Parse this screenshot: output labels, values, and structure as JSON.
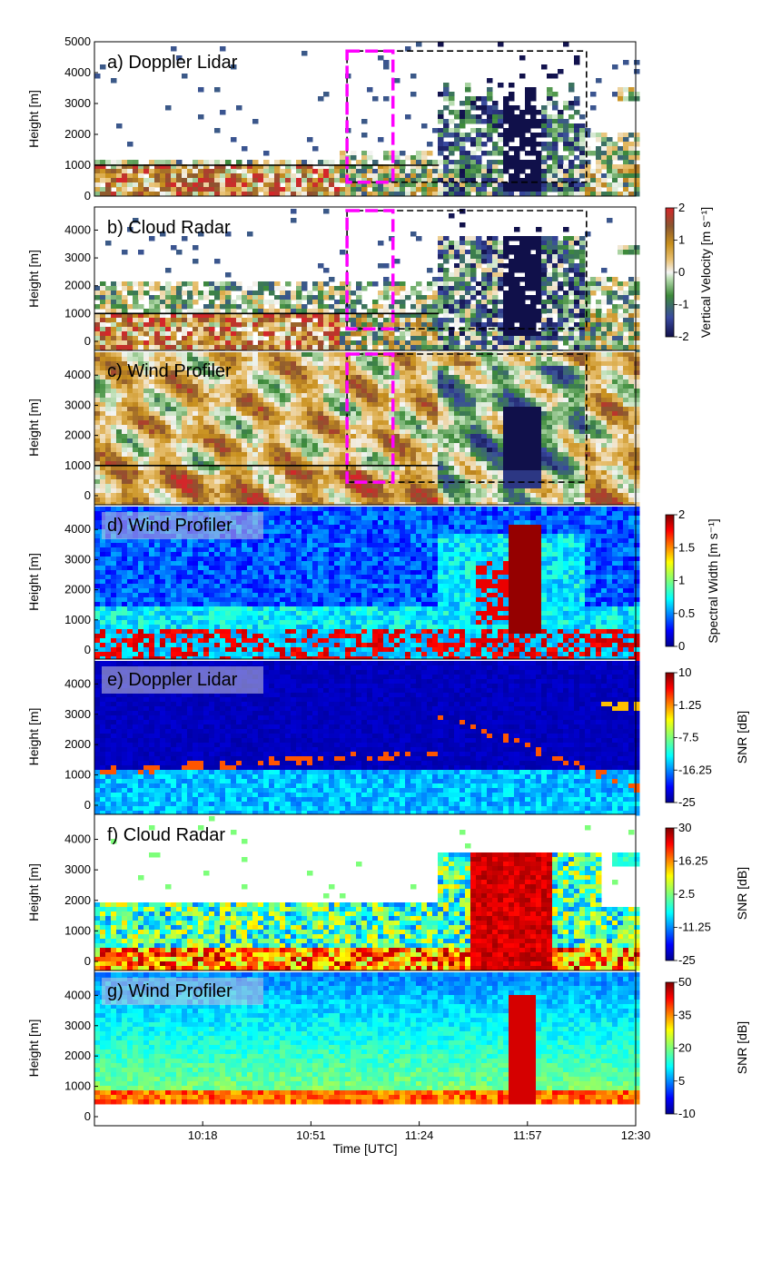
{
  "chart_data": {
    "type": "heatmap",
    "shared_x_axis": {
      "label": "Time [UTC]",
      "ticks": [
        "10:18",
        "10:51",
        "11:24",
        "11:57",
        "12:30"
      ],
      "tick_values_minutes": [
        618,
        651,
        684,
        717,
        750
      ],
      "range_minutes": [
        585,
        750
      ]
    },
    "y_axis": {
      "label": "Height [m]",
      "range": [
        0,
        5000
      ],
      "ticks_panel_a": [
        0,
        1000,
        2000,
        3000,
        4000,
        5000
      ],
      "ticks_other": [
        0,
        1000,
        2000,
        3000,
        4000
      ]
    },
    "panels": [
      {
        "id": "a",
        "label": "a) Doppler Lidar",
        "variable": "Vertical Velocity",
        "colormap": "velocity",
        "boxes": true,
        "label_bg": false,
        "ymax": 5000
      },
      {
        "id": "b",
        "label": "b) Cloud Radar",
        "variable": "Vertical Velocity",
        "colormap": "velocity",
        "boxes": true,
        "label_bg": false,
        "ymax": 4700
      },
      {
        "id": "c",
        "label": "c) Wind Profiler",
        "variable": "Vertical Velocity",
        "colormap": "velocity",
        "boxes": true,
        "label_bg": false,
        "ymax": 4700
      },
      {
        "id": "d",
        "label": "d) Wind Profiler",
        "variable": "Spectral Width",
        "colormap": "jet",
        "boxes": false,
        "label_bg": true,
        "ymax": 4700
      },
      {
        "id": "e",
        "label": "e) Doppler Lidar",
        "variable": "SNR",
        "colormap": "jet",
        "boxes": false,
        "label_bg": true,
        "ymax": 4700
      },
      {
        "id": "f",
        "label": "f) Cloud Radar",
        "variable": "SNR",
        "colormap": "jet",
        "boxes": false,
        "label_bg": false,
        "ymax": 4700
      },
      {
        "id": "g",
        "label": "g) Wind Profiler",
        "variable": "SNR",
        "colormap": "jet",
        "boxes": false,
        "label_bg": true,
        "ymax": 4700
      }
    ],
    "annotations": {
      "magenta_box_time_minutes": [
        662,
        676
      ],
      "black_box_time_minutes": [
        662,
        735
      ],
      "black_box_height_m": [
        450,
        4700
      ],
      "horizontal_line_height_m": 1000,
      "horizontal_line_time_minutes": [
        585,
        690
      ],
      "magenta_color": "#ff00ff"
    },
    "colorbars": [
      {
        "id": "velocity",
        "title": "Vertical Velocity [m s⁻¹]",
        "ticks": [
          "2",
          "1",
          "0",
          "-1",
          "-2"
        ],
        "range": [
          -2,
          2
        ],
        "applies_to": [
          "a",
          "b",
          "c"
        ]
      },
      {
        "id": "width",
        "title": "Spectral Width [m s⁻¹]",
        "ticks": [
          "2",
          "1.5",
          "1",
          "0.5",
          "0"
        ],
        "range": [
          0,
          2
        ],
        "applies_to": [
          "d"
        ]
      },
      {
        "id": "snr_lidar",
        "title": "SNR [dB]",
        "ticks": [
          "10",
          "1.25",
          "-7.5",
          "-16.25",
          "-25"
        ],
        "range": [
          -25,
          10
        ],
        "applies_to": [
          "e"
        ]
      },
      {
        "id": "snr_radar",
        "title": "SNR [dB]",
        "ticks": [
          "30",
          "16.25",
          "2.5",
          "-11.25",
          "-25"
        ],
        "range": [
          -25,
          30
        ],
        "applies_to": [
          "f"
        ]
      },
      {
        "id": "snr_profiler",
        "title": "SNR [dB]",
        "ticks": [
          "50",
          "35",
          "20",
          "5",
          "-10"
        ],
        "range": [
          -10,
          50
        ],
        "applies_to": [
          "g"
        ]
      }
    ]
  }
}
